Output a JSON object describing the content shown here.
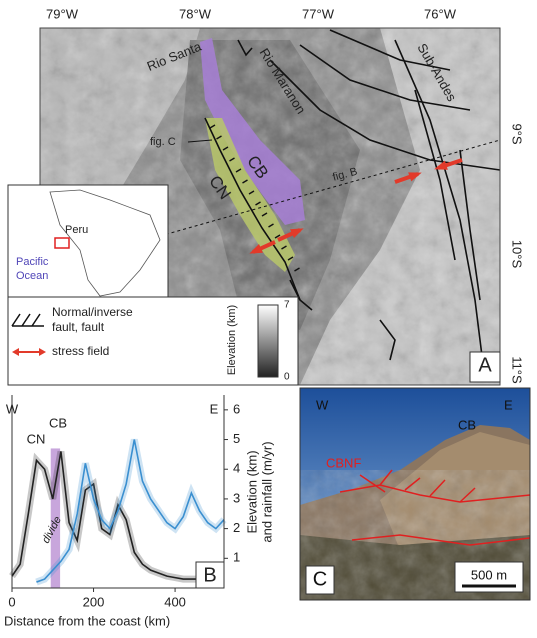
{
  "map": {
    "panel": "A",
    "longitude_labels": [
      "79°W",
      "78°W",
      "77°W",
      "76°W"
    ],
    "latitude_labels": [
      "9°S",
      "10°S",
      "11°S"
    ],
    "labels": {
      "rio_santa": "Rio Santa",
      "rio_maranon": "Rio Maranon",
      "sub_andes": "Sub-Andes",
      "fig_c": "fig. C",
      "fig_b": "fig. B",
      "cb": "CB",
      "cn": "CN"
    },
    "inset": {
      "country": "Peru",
      "ocean": [
        "Pacific",
        "Ocean"
      ]
    },
    "legend": {
      "fault": [
        "Normal/inverse",
        "fault, fault"
      ],
      "stress": "stress field",
      "elevation_title": "Elevation (km)",
      "elevation_max": 7,
      "elevation_min": 0
    }
  },
  "panel_b": {
    "type": "line",
    "panel": "B",
    "labels": {
      "west": "W",
      "east": "E",
      "cn": "CN",
      "cb": "CB",
      "divide": "divide"
    },
    "x_label": "Distance from the coast (km)",
    "y_label": [
      "Elevation (km)",
      "and rainfall (m/yr)"
    ],
    "x": [
      0,
      20,
      40,
      60,
      80,
      100,
      120,
      140,
      160,
      180,
      200,
      220,
      240,
      260,
      280,
      300,
      320,
      340,
      360,
      380,
      400,
      420,
      440,
      460,
      480,
      500,
      520
    ],
    "series": [
      {
        "color": "#222222",
        "values": [
          0.4,
          0.8,
          2.5,
          4.3,
          4.0,
          3.0,
          4.6,
          2.2,
          1.6,
          3.3,
          3.5,
          2.0,
          1.8,
          2.8,
          2.3,
          1.2,
          0.8,
          0.6,
          0.5,
          0.4,
          0.35,
          0.3,
          0.3,
          0.3,
          0.3,
          0.3,
          0.3
        ]
      },
      {
        "color": "#3a8fd0",
        "values": [
          null,
          null,
          null,
          0.2,
          0.3,
          0.6,
          0.9,
          1.3,
          2.5,
          4.2,
          3.0,
          2.3,
          2.0,
          2.6,
          3.5,
          5.0,
          3.6,
          3.0,
          2.6,
          2.2,
          2.0,
          2.4,
          3.2,
          2.6,
          2.2,
          2.0,
          2.3
        ]
      }
    ],
    "xlim": [
      0,
      520
    ],
    "ylim": [
      0,
      6.5
    ],
    "xticks": [
      0,
      200,
      400
    ],
    "yticks": [
      1,
      2,
      3,
      4,
      5,
      6
    ]
  },
  "panel_c": {
    "panel": "C",
    "west": "W",
    "east": "E",
    "cb": "CB",
    "fault": "CBNF",
    "scale": "500 m"
  }
}
